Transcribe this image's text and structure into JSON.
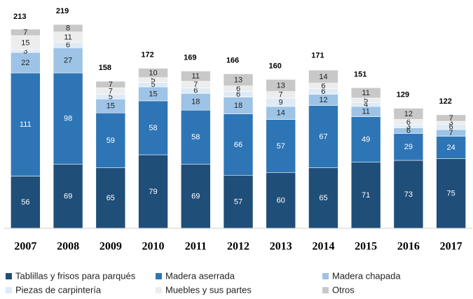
{
  "chart_data": {
    "type": "bar",
    "stacked": true,
    "categories": [
      "2007",
      "2008",
      "2009",
      "2010",
      "2011",
      "2012",
      "2013",
      "2014",
      "2015",
      "2016",
      "2017"
    ],
    "totals": [
      213,
      219,
      158,
      172,
      169,
      166,
      160,
      171,
      151,
      129,
      122
    ],
    "series": [
      {
        "name": "Tablillas y frisos para parqués",
        "color": "#1f4e79",
        "values": [
          56,
          69,
          65,
          79,
          69,
          57,
          60,
          65,
          71,
          73,
          75
        ]
      },
      {
        "name": "Madera aserrada",
        "color": "#2e75b6",
        "values": [
          111,
          98,
          59,
          58,
          58,
          66,
          57,
          67,
          49,
          29,
          24
        ]
      },
      {
        "name": "Madera chapada",
        "color": "#9dc3e6",
        "values": [
          22,
          27,
          15,
          15,
          18,
          18,
          14,
          12,
          11,
          6,
          7
        ]
      },
      {
        "name": "Piezas de carpintería",
        "color": "#deebf7",
        "values": [
          3,
          6,
          5,
          5,
          6,
          6,
          9,
          6,
          4,
          3,
          6
        ]
      },
      {
        "name": "Muebles y sus partes",
        "color": "#ededed",
        "values": [
          15,
          11,
          7,
          5,
          7,
          6,
          7,
          6,
          5,
          6,
          3
        ]
      },
      {
        "name": "Otros",
        "color": "#c8c8c8",
        "values": [
          7,
          8,
          7,
          10,
          11,
          13,
          13,
          14,
          11,
          12,
          7
        ]
      }
    ]
  }
}
